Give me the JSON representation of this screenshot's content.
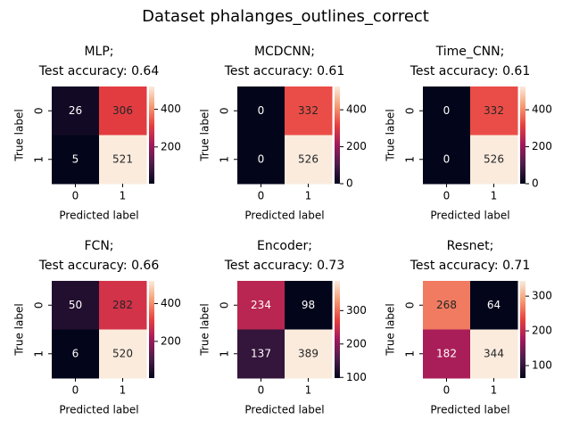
{
  "title": "Dataset phalanges_outlines_correct",
  "colormap": [
    "#03051a",
    "#4c1d4b",
    "#a11a5b",
    "#e83f3f",
    "#f69c73",
    "#faebdd"
  ],
  "chart_data": [
    {
      "type": "heatmap",
      "title": [
        "MLP;",
        "Test accuracy: 0.64"
      ],
      "xlabel": "Predicted label",
      "ylabel": "True label",
      "x": [
        "0",
        "1"
      ],
      "y": [
        "0",
        "1"
      ],
      "values": [
        [
          26,
          306
        ],
        [
          5,
          521
        ]
      ],
      "clim": [
        5,
        521
      ],
      "cticks": [
        200,
        400
      ]
    },
    {
      "type": "heatmap",
      "title": [
        "MCDCNN;",
        "Test accuracy: 0.61"
      ],
      "xlabel": "Predicted label",
      "ylabel": "True label",
      "x": [
        "0",
        "1"
      ],
      "y": [
        "0",
        "1"
      ],
      "values": [
        [
          0,
          332
        ],
        [
          0,
          526
        ]
      ],
      "clim": [
        0,
        526
      ],
      "cticks": [
        0,
        200,
        400
      ]
    },
    {
      "type": "heatmap",
      "title": [
        "Time_CNN;",
        "Test accuracy: 0.61"
      ],
      "xlabel": "Predicted label",
      "ylabel": "True label",
      "x": [
        "0",
        "1"
      ],
      "y": [
        "0",
        "1"
      ],
      "values": [
        [
          0,
          332
        ],
        [
          0,
          526
        ]
      ],
      "clim": [
        0,
        526
      ],
      "cticks": [
        0,
        200,
        400
      ]
    },
    {
      "type": "heatmap",
      "title": [
        "FCN;",
        "Test accuracy: 0.66"
      ],
      "xlabel": "Predicted label",
      "ylabel": "True label",
      "x": [
        "0",
        "1"
      ],
      "y": [
        "0",
        "1"
      ],
      "values": [
        [
          50,
          282
        ],
        [
          6,
          520
        ]
      ],
      "clim": [
        6,
        520
      ],
      "cticks": [
        200,
        400
      ]
    },
    {
      "type": "heatmap",
      "title": [
        "Encoder;",
        "Test accuracy: 0.73"
      ],
      "xlabel": "Predicted label",
      "ylabel": "True label",
      "x": [
        "0",
        "1"
      ],
      "y": [
        "0",
        "1"
      ],
      "values": [
        [
          234,
          98
        ],
        [
          137,
          389
        ]
      ],
      "clim": [
        98,
        389
      ],
      "cticks": [
        100,
        200,
        300
      ]
    },
    {
      "type": "heatmap",
      "title": [
        "Resnet;",
        "Test accuracy: 0.71"
      ],
      "xlabel": "Predicted label",
      "ylabel": "True label",
      "x": [
        "0",
        "1"
      ],
      "y": [
        "0",
        "1"
      ],
      "values": [
        [
          268,
          64
        ],
        [
          182,
          344
        ]
      ],
      "clim": [
        64,
        344
      ],
      "cticks": [
        100,
        200,
        300
      ]
    }
  ]
}
